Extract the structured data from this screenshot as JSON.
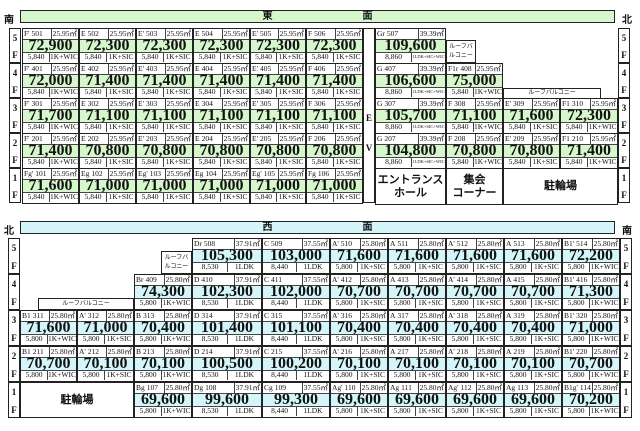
{
  "colors": {
    "east_accent": "#d6f6cc",
    "west_accent": "#d4f6fa"
  },
  "east": {
    "title": "東　　　　　　　　　面",
    "left_dir": "南",
    "right_dir": "北",
    "ev_label": "E",
    "ev_label2": "V",
    "floors": [
      {
        "floor": "5",
        "units": [
          [
            "F'",
            "501",
            "25.95㎡",
            "72,900",
            "5,840",
            "1K+WIC"
          ],
          [
            "E",
            "502",
            "25.95㎡",
            "72,300",
            "5,840",
            "1K+SIC"
          ],
          [
            "E'",
            "503",
            "25.95㎡",
            "72,300",
            "5,840",
            "1K+SIC"
          ],
          [
            "E",
            "504",
            "25.95㎡",
            "72,300",
            "5,840",
            "1K+SIC"
          ],
          [
            "E'",
            "505",
            "25.95㎡",
            "72,300",
            "5,840",
            "1K+SIC"
          ],
          [
            "F",
            "506",
            "25.95㎡",
            "72,300",
            "5,840",
            "1K+SIC"
          ],
          [
            "Gr",
            "507",
            "39.39㎡",
            "109,600",
            "8,860",
            "1LDK+SIC+WIC"
          ]
        ]
      },
      {
        "floor": "4",
        "units": [
          [
            "F'",
            "401",
            "25.95㎡",
            "72,000",
            "5,840",
            "1K+WIC"
          ],
          [
            "E",
            "402",
            "25.95㎡",
            "71,400",
            "5,840",
            "1K+SIC"
          ],
          [
            "E'",
            "403",
            "25.95㎡",
            "71,400",
            "5,840",
            "1K+SIC"
          ],
          [
            "E",
            "404",
            "25.95㎡",
            "71,400",
            "5,840",
            "1K+SIC"
          ],
          [
            "E'",
            "405",
            "25.95㎡",
            "71,400",
            "5,840",
            "1K+SIC"
          ],
          [
            "F",
            "406",
            "25.95㎡",
            "71,400",
            "5,840",
            "1K+SIC"
          ],
          [
            "G",
            "407",
            "39.39㎡",
            "106,600",
            "8,860",
            "1LDK+SIC+WIC"
          ],
          [
            "F1r",
            "408",
            "25.95㎡",
            "75,000",
            "5,840",
            "1K+WIC"
          ]
        ]
      },
      {
        "floor": "3",
        "units": [
          [
            "F'",
            "301",
            "25.95㎡",
            "71,700",
            "5,840",
            "1K+WIC"
          ],
          [
            "E",
            "302",
            "25.95㎡",
            "71,100",
            "5,840",
            "1K+SIC"
          ],
          [
            "E'",
            "303",
            "25.95㎡",
            "71,100",
            "5,840",
            "1K+SIC"
          ],
          [
            "E",
            "304",
            "25.95㎡",
            "71,100",
            "5,840",
            "1K+SIC"
          ],
          [
            "E'",
            "305",
            "25.95㎡",
            "71,100",
            "5,840",
            "1K+SIC"
          ],
          [
            "F",
            "306",
            "25.95㎡",
            "71,100",
            "5,840",
            "1K+SIC"
          ],
          [
            "G",
            "307",
            "39.39㎡",
            "105,700",
            "8,860",
            "1LDK+SIC+WIC"
          ],
          [
            "F",
            "308",
            "25.95㎡",
            "71,100",
            "5,840",
            "1K+WIC"
          ],
          [
            "E'",
            "309",
            "25.95㎡",
            "71,600",
            "5,840",
            "1K+SIC"
          ],
          [
            "F1",
            "310",
            "25.95㎡",
            "72,300",
            "5,840",
            "1K+WIC"
          ]
        ]
      },
      {
        "floor": "2",
        "units": [
          [
            "F'",
            "201",
            "25.95㎡",
            "71,400",
            "5,840",
            "1K+WIC"
          ],
          [
            "E",
            "202",
            "25.95㎡",
            "70,800",
            "5,840",
            "1K+SIC"
          ],
          [
            "E'",
            "203",
            "25.95㎡",
            "70,800",
            "5,840",
            "1K+SIC"
          ],
          [
            "E",
            "204",
            "25.95㎡",
            "70,800",
            "5,840",
            "1K+SIC"
          ],
          [
            "E'",
            "205",
            "25.95㎡",
            "70,800",
            "5,840",
            "1K+SIC"
          ],
          [
            "F",
            "206",
            "25.95㎡",
            "70,800",
            "5,840",
            "1K+SIC"
          ],
          [
            "G",
            "207",
            "39.39㎡",
            "104,800",
            "8,860",
            "1LDK+SIC+WIC"
          ],
          [
            "F",
            "208",
            "25.95㎡",
            "70,800",
            "5,840",
            "1K+WIC"
          ],
          [
            "E'",
            "209",
            "25.95㎡",
            "70,800",
            "5,840",
            "1K+SIC"
          ],
          [
            "F1",
            "210",
            "25.95㎡",
            "71,400",
            "5,840",
            "1K+WIC"
          ]
        ]
      },
      {
        "floor": "1",
        "units": [
          [
            "Fg'",
            "101",
            "25.95㎡",
            "71,600",
            "5,840",
            "1K+WIC"
          ],
          [
            "Eg",
            "102",
            "25.95㎡",
            "71,000",
            "5,840",
            "1K+SIC"
          ],
          [
            "Eg'",
            "103",
            "25.95㎡",
            "71,000",
            "5,840",
            "1K+SIC"
          ],
          [
            "Eg",
            "104",
            "25.95㎡",
            "71,000",
            "5,840",
            "1K+SIC"
          ],
          [
            "Eg'",
            "105",
            "25.95㎡",
            "71,000",
            "5,840",
            "1K+SIC"
          ],
          [
            "Fg",
            "106",
            "25.95㎡",
            "71,000",
            "5,840",
            "1K+SIC"
          ]
        ]
      }
    ],
    "roof_small": "ルーフバルコニー",
    "roof_wide": "ルーフバルコニー",
    "entrance": "エントランス\nホール",
    "lounge": "集会\nコーナー",
    "bike": "駐輪場"
  },
  "west": {
    "title": "西　　　　　　　　　面",
    "left_dir": "北",
    "right_dir": "南",
    "floors": [
      {
        "floor": "5",
        "units": [
          [
            "Dr",
            "508",
            "37.91㎡",
            "105,300",
            "8,530",
            "1LDK"
          ],
          [
            "C",
            "509",
            "37.55㎡",
            "103,000",
            "8,440",
            "1LDK"
          ],
          [
            "A'",
            "510",
            "25.80㎡",
            "71,600",
            "5,800",
            "1K+SIC"
          ],
          [
            "A",
            "511",
            "25.80㎡",
            "71,600",
            "5,800",
            "1K+SIC"
          ],
          [
            "A'",
            "512",
            "25.80㎡",
            "71,600",
            "5,800",
            "1K+SIC"
          ],
          [
            "A",
            "513",
            "25.80㎡",
            "71,600",
            "5,800",
            "1K+SIC"
          ],
          [
            "B1'",
            "514",
            "25.80㎡",
            "72,200",
            "5,800",
            "1K+WIC"
          ]
        ]
      },
      {
        "floor": "4",
        "units": [
          [
            "Br",
            "409",
            "25.80㎡",
            "74,300",
            "5,800",
            "1K+WIC"
          ],
          [
            "D",
            "410",
            "37.91㎡",
            "102,300",
            "8,530",
            "1LDK"
          ],
          [
            "C",
            "411",
            "37.55㎡",
            "102,000",
            "8,440",
            "1LDK"
          ],
          [
            "A'",
            "412",
            "25.80㎡",
            "70,700",
            "5,800",
            "1K+SIC"
          ],
          [
            "A",
            "413",
            "25.80㎡",
            "70,700",
            "5,800",
            "1K+SIC"
          ],
          [
            "A'",
            "414",
            "25.80㎡",
            "70,700",
            "5,800",
            "1K+SIC"
          ],
          [
            "A",
            "415",
            "25.80㎡",
            "70,700",
            "5,800",
            "1K+SIC"
          ],
          [
            "B1'",
            "416",
            "25.80㎡",
            "71,300",
            "5,800",
            "1K+WIC"
          ]
        ]
      },
      {
        "floor": "3",
        "units": [
          [
            "B1",
            "311",
            "25.80㎡",
            "71,600",
            "5,800",
            "1K+WIC"
          ],
          [
            "A'",
            "312",
            "25.80㎡",
            "71,000",
            "5,800",
            "1K+SIC"
          ],
          [
            "B",
            "313",
            "25.80㎡",
            "70,400",
            "5,800",
            "1K+WIC"
          ],
          [
            "D",
            "314",
            "37.91㎡",
            "101,400",
            "8,530",
            "1LDK"
          ],
          [
            "C",
            "315",
            "37.55㎡",
            "101,100",
            "8,440",
            "1LDK"
          ],
          [
            "A'",
            "316",
            "25.80㎡",
            "70,400",
            "5,800",
            "1K+SIC"
          ],
          [
            "A",
            "317",
            "25.80㎡",
            "70,400",
            "5,800",
            "1K+SIC"
          ],
          [
            "A'",
            "318",
            "25.80㎡",
            "70,400",
            "5,800",
            "1K+SIC"
          ],
          [
            "A",
            "319",
            "25.80㎡",
            "70,400",
            "5,800",
            "1K+SIC"
          ],
          [
            "B1'",
            "320",
            "25.80㎡",
            "71,000",
            "5,800",
            "1K+WIC"
          ]
        ]
      },
      {
        "floor": "2",
        "units": [
          [
            "B1",
            "211",
            "25.80㎡",
            "70,700",
            "5,800",
            "1K+WIC"
          ],
          [
            "A'",
            "212",
            "25.80㎡",
            "70,100",
            "5,800",
            "1K+SIC"
          ],
          [
            "B",
            "213",
            "25.80㎡",
            "70,100",
            "5,800",
            "1K+WIC"
          ],
          [
            "D",
            "214",
            "37.91㎡",
            "100,500",
            "8,530",
            "1LDK"
          ],
          [
            "C",
            "215",
            "37.55㎡",
            "100,200",
            "8,440",
            "1LDK"
          ],
          [
            "A'",
            "216",
            "25.80㎡",
            "70,100",
            "5,800",
            "1K+SIC"
          ],
          [
            "A",
            "217",
            "25.80㎡",
            "70,100",
            "5,800",
            "1K+SIC"
          ],
          [
            "A'",
            "218",
            "25.80㎡",
            "70,100",
            "5,800",
            "1K+SIC"
          ],
          [
            "A",
            "219",
            "25.80㎡",
            "70,100",
            "5,800",
            "1K+SIC"
          ],
          [
            "B1'",
            "220",
            "25.80㎡",
            "70,700",
            "5,800",
            "1K+WIC"
          ]
        ]
      },
      {
        "floor": "1",
        "units": [
          [
            "Bg",
            "107",
            "25.80㎡",
            "69,600",
            "5,800",
            "1K+WIC"
          ],
          [
            "Dg",
            "108",
            "37.91㎡",
            "99,600",
            "8,530",
            "1LDK"
          ],
          [
            "Cg",
            "109",
            "37.55㎡",
            "99,300",
            "8,440",
            "1LDK"
          ],
          [
            "Ag'",
            "110",
            "25.80㎡",
            "69,600",
            "5,800",
            "1K+SIC"
          ],
          [
            "Ag",
            "111",
            "25.80㎡",
            "69,600",
            "5,800",
            "1K+SIC"
          ],
          [
            "Ag'",
            "112",
            "25.80㎡",
            "69,600",
            "5,800",
            "1K+SIC"
          ],
          [
            "Ag",
            "113",
            "25.80㎡",
            "69,600",
            "5,800",
            "1K+SIC"
          ],
          [
            "B1g'",
            "114",
            "25.80㎡",
            "70,200",
            "5,800",
            "1K+WIC"
          ]
        ]
      }
    ],
    "roof_small": "ルーフバルコニー",
    "roof_wide": "ルーフバルコニー",
    "bike": "駐輪場"
  },
  "floor_suffix": "F"
}
